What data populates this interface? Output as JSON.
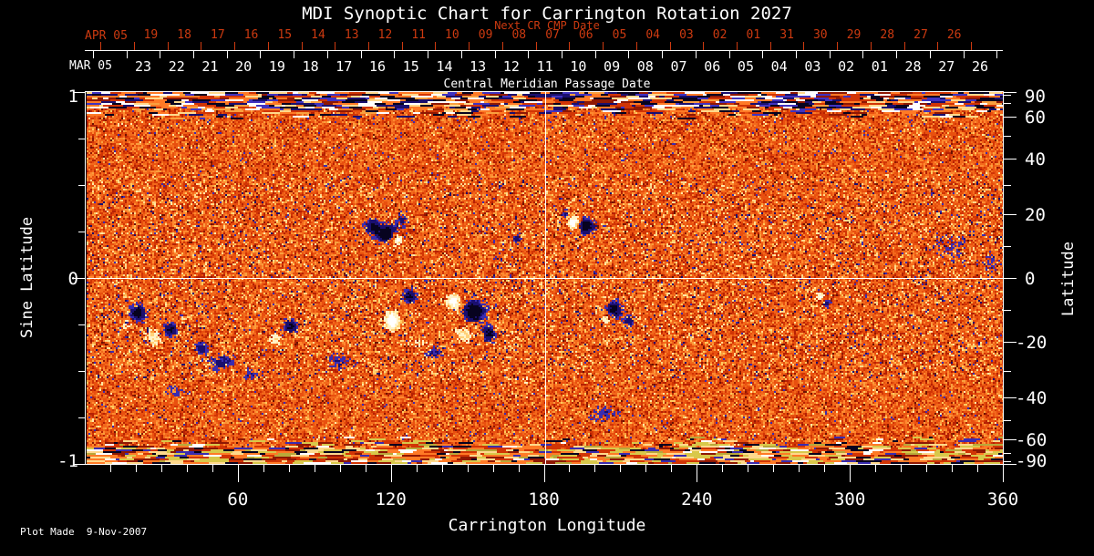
{
  "title": "MDI Synoptic Chart for Carrington Rotation 2027",
  "colors": {
    "background": "#000000",
    "foreground": "#ffffff",
    "next_cr_red": "#cd3a10",
    "crosshair": "#ffffff"
  },
  "top_axis_next": {
    "title": "Next CR CMP Date",
    "month_label": "APR 05",
    "days": [
      "19",
      "18",
      "17",
      "16",
      "15",
      "14",
      "13",
      "12",
      "11",
      "10",
      "09",
      "08",
      "07",
      "06",
      "05",
      "04",
      "03",
      "02",
      "01",
      "31",
      "30",
      "29",
      "28",
      "27",
      "26"
    ]
  },
  "top_axis_cmp": {
    "title": "Central Meridian Passage Date",
    "month_label": "MAR 05",
    "days": [
      "23",
      "22",
      "21",
      "20",
      "19",
      "18",
      "17",
      "16",
      "15",
      "14",
      "13",
      "12",
      "11",
      "10",
      "09",
      "08",
      "07",
      "06",
      "05",
      "04",
      "03",
      "02",
      "01",
      "28",
      "27",
      "26"
    ]
  },
  "bottom_axis": {
    "label": "Carrington Longitude",
    "tick_labels": [
      "60",
      "120",
      "180",
      "240",
      "300",
      "360"
    ]
  },
  "left_axis": {
    "label": "Sine Latitude",
    "tick_labels": [
      "1",
      "0",
      "-1"
    ]
  },
  "right_axis": {
    "label": "Latitude",
    "tick_labels": [
      "90",
      "60",
      "40",
      "20",
      "0",
      "-20",
      "-40",
      "-60",
      "-90"
    ]
  },
  "footer": {
    "note": "Plot Made  9-Nov-2007"
  },
  "chart_data": {
    "type": "heatmap",
    "description": "Solar photospheric magnetic field synoptic map, orange-red mottled background with negative (dark navy) and positive (white) polarity active regions; noisy streaked polar rows",
    "x_range_deg": [
      0,
      360
    ],
    "sine_lat_range": [
      -1,
      1
    ],
    "lon_major_ticks": [
      60,
      120,
      180,
      240,
      300,
      360
    ],
    "lon_minor_step": 10,
    "sine_major_ticks": [
      1,
      0,
      -1
    ],
    "sine_minor_step": 0.25,
    "lat_labeled_ticks": [
      90,
      60,
      40,
      20,
      0,
      -20,
      -40,
      -60,
      -90
    ],
    "lat_minor_step": 10,
    "crosshair": {
      "lon": 180,
      "sine_lat": 0
    },
    "cmp_day_step_deg": 13.2,
    "base_palette": [
      [
        0.26,
        "#e8500f"
      ],
      [
        0.48,
        "#f2691c"
      ],
      [
        0.62,
        "#d13505"
      ],
      [
        0.74,
        "#ff8a30"
      ],
      [
        0.84,
        "#b52104"
      ],
      [
        0.9,
        "#f9a03f"
      ],
      [
        0.935,
        "#ffc95e"
      ],
      [
        0.955,
        "#8f1803"
      ],
      [
        0.97,
        "#6b1202"
      ],
      [
        0.985,
        "#3a2cb0"
      ],
      [
        1.01,
        "#ffe9a8"
      ]
    ],
    "north_streak_palette": [
      [
        0.14,
        "#07031f"
      ],
      [
        0.24,
        "#1a0f6e"
      ],
      [
        0.33,
        "#4032c0"
      ],
      [
        0.45,
        "#ffffff"
      ],
      [
        0.55,
        "#ffd98c"
      ],
      [
        0.72,
        "#ff7a26"
      ],
      [
        0.86,
        "#d13505"
      ],
      [
        0.94,
        "#8f1803"
      ],
      [
        1.01,
        "#f9a03f"
      ]
    ],
    "south_streak_palette": [
      [
        0.1,
        "#07031f"
      ],
      [
        0.16,
        "#3a2cb0"
      ],
      [
        0.3,
        "#d8c84a"
      ],
      [
        0.44,
        "#ffd98c"
      ],
      [
        0.62,
        "#ff7a26"
      ],
      [
        0.78,
        "#d13505"
      ],
      [
        0.88,
        "#8f1803"
      ],
      [
        0.94,
        "#ffffff"
      ],
      [
        1.01,
        "#b8a83a"
      ]
    ],
    "positive_colors": {
      "hot": "#ffffff",
      "warm": "#fff3c8",
      "mild": "#ffd27a"
    },
    "negative_colors": {
      "deep": "#07031f",
      "mid": "#1a0f6e",
      "edge": "#3a2cb0"
    },
    "active_regions": [
      {
        "lon": 118,
        "slat": 0.24,
        "rlon": 5,
        "rslat": 0.05,
        "strength": 1.5,
        "polarity": "neg"
      },
      {
        "lon": 112,
        "slat": 0.28,
        "rlon": 3,
        "rslat": 0.04,
        "strength": 1.1,
        "polarity": "neg"
      },
      {
        "lon": 124,
        "slat": 0.31,
        "rlon": 2.5,
        "rslat": 0.03,
        "strength": 0.8,
        "polarity": "neg"
      },
      {
        "lon": 196,
        "slat": 0.28,
        "rlon": 3.5,
        "rslat": 0.045,
        "strength": 1.5,
        "polarity": "neg"
      },
      {
        "lon": 188,
        "slat": 0.34,
        "rlon": 2.2,
        "rslat": 0.03,
        "strength": 0.9,
        "polarity": "neg"
      },
      {
        "lon": 169,
        "slat": 0.21,
        "rlon": 1.8,
        "rslat": 0.03,
        "strength": 0.9,
        "polarity": "neg"
      },
      {
        "lon": 127,
        "slat": -0.1,
        "rlon": 3,
        "rslat": 0.04,
        "strength": 1.2,
        "polarity": "neg"
      },
      {
        "lon": 152,
        "slat": -0.18,
        "rlon": 4.5,
        "rslat": 0.06,
        "strength": 1.6,
        "polarity": "neg"
      },
      {
        "lon": 158,
        "slat": -0.3,
        "rlon": 3,
        "rslat": 0.045,
        "strength": 1.2,
        "polarity": "neg"
      },
      {
        "lon": 136,
        "slat": -0.4,
        "rlon": 5,
        "rslat": 0.04,
        "strength": 0.8,
        "polarity": "neg"
      },
      {
        "lon": 20,
        "slat": -0.19,
        "rlon": 3.5,
        "rslat": 0.05,
        "strength": 1.3,
        "polarity": "neg"
      },
      {
        "lon": 33,
        "slat": -0.28,
        "rlon": 3,
        "rslat": 0.04,
        "strength": 1.2,
        "polarity": "neg"
      },
      {
        "lon": 45,
        "slat": -0.38,
        "rlon": 3,
        "rslat": 0.035,
        "strength": 0.9,
        "polarity": "neg"
      },
      {
        "lon": 54,
        "slat": -0.46,
        "rlon": 6,
        "rslat": 0.05,
        "strength": 0.9,
        "polarity": "neg"
      },
      {
        "lon": 64,
        "slat": -0.52,
        "rlon": 4,
        "rslat": 0.04,
        "strength": 0.7,
        "polarity": "neg"
      },
      {
        "lon": 80,
        "slat": -0.26,
        "rlon": 3,
        "rslat": 0.04,
        "strength": 1.2,
        "polarity": "neg"
      },
      {
        "lon": 99,
        "slat": -0.45,
        "rlon": 5,
        "rslat": 0.05,
        "strength": 0.7,
        "polarity": "neg"
      },
      {
        "lon": 207,
        "slat": -0.17,
        "rlon": 3.5,
        "rslat": 0.05,
        "strength": 1.3,
        "polarity": "neg"
      },
      {
        "lon": 213,
        "slat": -0.23,
        "rlon": 2.5,
        "rslat": 0.035,
        "strength": 0.9,
        "polarity": "neg"
      },
      {
        "lon": 290,
        "slat": -0.13,
        "rlon": 2.2,
        "rslat": 0.03,
        "strength": 0.9,
        "polarity": "neg"
      },
      {
        "lon": 339,
        "slat": 0.17,
        "rlon": 9,
        "rslat": 0.09,
        "strength": 0.5,
        "polarity": "neg"
      },
      {
        "lon": 203,
        "slat": -0.73,
        "rlon": 8,
        "rslat": 0.05,
        "strength": 0.6,
        "polarity": "neg"
      },
      {
        "lon": 35,
        "slat": -0.61,
        "rlon": 7,
        "rslat": 0.05,
        "strength": 0.45,
        "polarity": "neg"
      },
      {
        "lon": 355,
        "slat": 0.08,
        "rlon": 4,
        "rslat": 0.06,
        "strength": 0.5,
        "polarity": "neg"
      },
      {
        "lon": 122,
        "slat": 0.21,
        "rlon": 2.2,
        "rslat": 0.035,
        "strength": 1.7,
        "polarity": "pos"
      },
      {
        "lon": 191,
        "slat": 0.3,
        "rlon": 2.3,
        "rslat": 0.04,
        "strength": 2.0,
        "polarity": "pos"
      },
      {
        "lon": 120,
        "slat": -0.23,
        "rlon": 2.8,
        "rslat": 0.05,
        "strength": 2.0,
        "polarity": "pos"
      },
      {
        "lon": 144,
        "slat": -0.13,
        "rlon": 2.6,
        "rslat": 0.04,
        "strength": 1.7,
        "polarity": "pos"
      },
      {
        "lon": 148,
        "slat": -0.31,
        "rlon": 3.5,
        "rslat": 0.05,
        "strength": 1.0,
        "polarity": "pos"
      },
      {
        "lon": 131,
        "slat": -0.36,
        "rlon": 4,
        "rslat": 0.04,
        "strength": 0.8,
        "polarity": "pos"
      },
      {
        "lon": 26,
        "slat": -0.32,
        "rlon": 3.5,
        "rslat": 0.05,
        "strength": 1.0,
        "polarity": "pos"
      },
      {
        "lon": 16,
        "slat": -0.25,
        "rlon": 2.5,
        "rslat": 0.03,
        "strength": 0.8,
        "polarity": "pos"
      },
      {
        "lon": 74,
        "slat": -0.33,
        "rlon": 2.6,
        "rslat": 0.04,
        "strength": 0.8,
        "polarity": "pos"
      },
      {
        "lon": 204,
        "slat": -0.22,
        "rlon": 1.8,
        "rslat": 0.03,
        "strength": 1.2,
        "polarity": "pos"
      },
      {
        "lon": 288,
        "slat": -0.1,
        "rlon": 1.8,
        "rslat": 0.025,
        "strength": 1.3,
        "polarity": "pos"
      },
      {
        "lon": 58,
        "slat": -0.5,
        "rlon": 4,
        "rslat": 0.04,
        "strength": 0.6,
        "polarity": "pos"
      },
      {
        "lon": 171,
        "slat": -0.55,
        "rlon": 5,
        "rslat": 0.05,
        "strength": 0.45,
        "polarity": "pos"
      },
      {
        "lon": 245,
        "slat": -0.35,
        "rlon": 7,
        "rslat": 0.08,
        "strength": 0.3,
        "polarity": "pos"
      },
      {
        "lon": 310,
        "slat": -0.2,
        "rlon": 6,
        "rslat": 0.07,
        "strength": 0.25,
        "polarity": "pos"
      }
    ]
  }
}
